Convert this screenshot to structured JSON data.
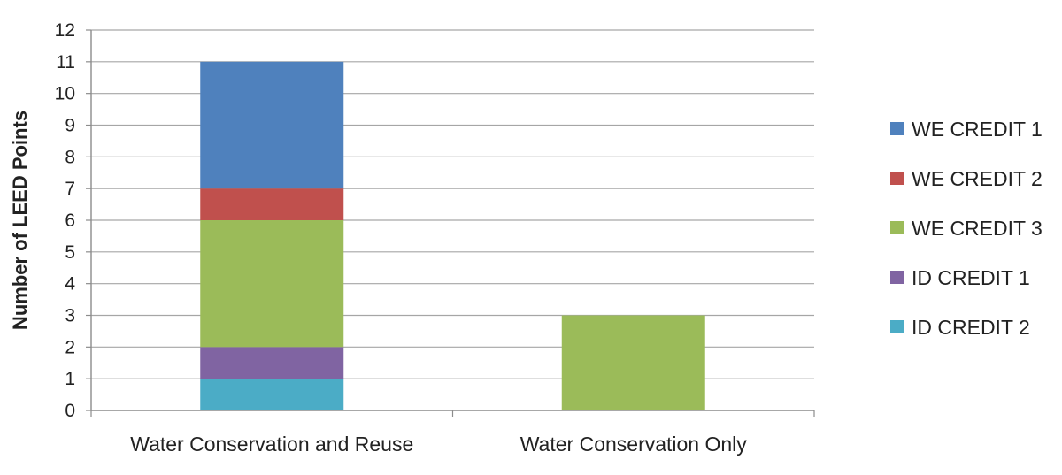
{
  "chart_data": {
    "type": "bar",
    "stacked": true,
    "title": "",
    "xlabel": "",
    "ylabel": "Number of LEED Points",
    "ylim": [
      0,
      12
    ],
    "yticks": [
      "0",
      "1",
      "2",
      "3",
      "4",
      "5",
      "6",
      "7",
      "8",
      "9",
      "10",
      "11",
      "12"
    ],
    "grid": true,
    "legend_position": "right",
    "categories": [
      "Water Conservation and Reuse",
      "Water Conservation Only"
    ],
    "series": [
      {
        "name": "ID CREDIT 2",
        "color": "#4BACC6",
        "values": [
          1,
          0
        ]
      },
      {
        "name": "ID CREDIT 1",
        "color": "#8064A2",
        "values": [
          1,
          0
        ]
      },
      {
        "name": "WE CREDIT 3",
        "color": "#9BBB59",
        "values": [
          4,
          3
        ]
      },
      {
        "name": "WE CREDIT 2",
        "color": "#C0504D",
        "values": [
          1,
          0
        ]
      },
      {
        "name": "WE CREDIT 1",
        "color": "#4F81BD",
        "values": [
          4,
          0
        ]
      }
    ],
    "legend_order": [
      "WE CREDIT 1",
      "WE CREDIT 2",
      "WE CREDIT 3",
      "ID CREDIT 1",
      "ID CREDIT 2"
    ]
  }
}
